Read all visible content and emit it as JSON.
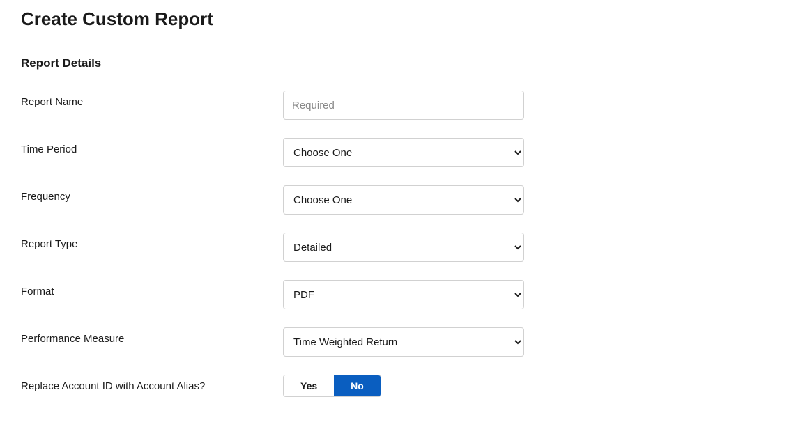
{
  "page": {
    "title": "Create Custom Report"
  },
  "section": {
    "header": "Report Details"
  },
  "fields": {
    "reportName": {
      "label": "Report Name",
      "placeholder": "Required",
      "value": ""
    },
    "timePeriod": {
      "label": "Time Period",
      "selected": "Choose One"
    },
    "frequency": {
      "label": "Frequency",
      "selected": "Choose One"
    },
    "reportType": {
      "label": "Report Type",
      "selected": "Detailed"
    },
    "format": {
      "label": "Format",
      "selected": "PDF"
    },
    "performanceMeasure": {
      "label": "Performance Measure",
      "selected": "Time Weighted Return"
    },
    "replaceAccountId": {
      "label": "Replace Account ID with Account Alias?",
      "yes": "Yes",
      "no": "No",
      "active": "no"
    }
  },
  "colors": {
    "accent": "#0a5ec0",
    "border": "#d1d1d1",
    "text": "#1a1a1a",
    "placeholder": "#888888",
    "background": "#ffffff"
  }
}
